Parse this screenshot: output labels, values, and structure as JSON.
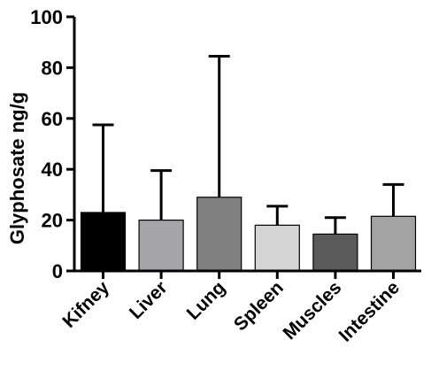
{
  "chart_data": {
    "type": "bar",
    "title": "",
    "xlabel": "",
    "ylabel": "Glyphosate ng/g",
    "ylim": [
      0,
      100
    ],
    "yticks": [
      0,
      20,
      40,
      60,
      80,
      100
    ],
    "categories": [
      "Kifney",
      "Liver",
      "Lung",
      "Spleen",
      "Muscles",
      "Intestine"
    ],
    "values": [
      23,
      20,
      29,
      18,
      14.5,
      21.5
    ],
    "error_upper": [
      57.5,
      39.5,
      84.5,
      25.5,
      21,
      34
    ],
    "colors": [
      "#000000",
      "#a6a6a9",
      "#808080",
      "#d4d4d4",
      "#5a5a5a",
      "#a3a3a3"
    ],
    "grid": false,
    "legend": "none"
  }
}
